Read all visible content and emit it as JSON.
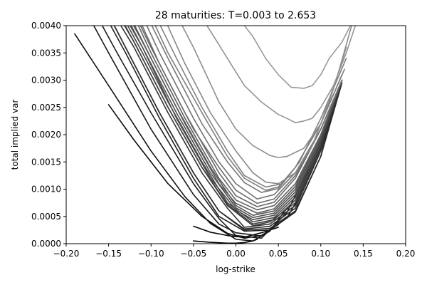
{
  "chart_data": {
    "type": "line",
    "title": "28 maturities: T=0.003 to 2.653",
    "xlabel": "log-strike",
    "ylabel": "total implied var",
    "xlim": [
      -0.2,
      0.2
    ],
    "ylim": [
      0,
      0.004
    ],
    "xticks": [
      -0.2,
      -0.15,
      -0.1,
      -0.05,
      0.0,
      0.05,
      0.1,
      0.15,
      0.2
    ],
    "xtick_labels": [
      "−0.20",
      "−0.15",
      "−0.10",
      "−0.05",
      "0.00",
      "0.05",
      "0.10",
      "0.15",
      "0.20"
    ],
    "yticks": [
      0,
      0.0005,
      0.001,
      0.0015,
      0.002,
      0.0025,
      0.003,
      0.0035,
      0.004
    ],
    "ytick_labels": [
      "0.0000",
      "0.0005",
      "0.0010",
      "0.0015",
      "0.0020",
      "0.0025",
      "0.0030",
      "0.0035",
      "0.0040"
    ],
    "grid": false,
    "legend": "none",
    "colors": {
      "darkest": "#000000",
      "lightest": "#999999"
    },
    "series": [
      {
        "x": [
          -0.05,
          -0.03,
          -0.01,
          0.0,
          0.01,
          0.02,
          0.025
        ],
        "y": [
          5e-05,
          2.5e-05,
          1e-05,
          1e-05,
          2e-05,
          5e-05,
          8e-05
        ]
      },
      {
        "x": [
          -0.05,
          -0.03,
          -0.01,
          0.0,
          0.01,
          0.03,
          0.05
        ],
        "y": [
          0.00032,
          0.00021,
          0.00015,
          0.00013,
          0.00012,
          0.0002,
          0.0003
        ]
      },
      {
        "x": [
          -0.15,
          -0.12,
          -0.08,
          -0.04,
          -0.01,
          0.01,
          0.03,
          0.05
        ],
        "y": [
          0.00255,
          0.0019,
          0.0011,
          0.0005,
          0.00019,
          0.0001,
          0.00015,
          0.00035
        ]
      },
      {
        "x": [
          -0.19,
          -0.15,
          -0.1,
          -0.06,
          -0.03,
          0.0,
          0.02,
          0.04,
          0.06
        ],
        "y": [
          0.00385,
          0.0029,
          0.0017,
          0.00086,
          0.00037,
          8e-05,
          5e-05,
          0.00023,
          0.00065
        ]
      },
      {
        "x": [
          -0.185,
          -0.15,
          -0.1,
          -0.05,
          -0.02,
          0.0,
          0.03,
          0.06,
          0.075
        ],
        "y": [
          0.0045,
          0.0035,
          0.0021,
          0.0009,
          0.00036,
          0.0002,
          0.00014,
          0.00047,
          0.00087
        ]
      },
      {
        "x": [
          -0.175,
          -0.14,
          -0.1,
          -0.05,
          -0.02,
          0.0,
          0.03,
          0.06,
          0.085
        ],
        "y": [
          0.0045,
          0.0035,
          0.0024,
          0.0011,
          0.00046,
          0.00015,
          0.0001,
          0.00057,
          0.00135
        ]
      },
      {
        "x": [
          -0.165,
          -0.13,
          -0.09,
          -0.05,
          -0.02,
          0.01,
          0.04,
          0.07,
          0.1,
          0.12
        ],
        "y": [
          0.0045,
          0.0035,
          0.0023,
          0.0012,
          0.0005,
          0.00023,
          0.00025,
          0.00058,
          0.0016,
          0.0028
        ]
      },
      {
        "x": [
          -0.16,
          -0.13,
          -0.09,
          -0.05,
          -0.02,
          0.01,
          0.04,
          0.07,
          0.1,
          0.124
        ],
        "y": [
          0.0045,
          0.0036,
          0.0024,
          0.0013,
          0.0006,
          0.00025,
          0.00028,
          0.0006,
          0.0016,
          0.0029
        ]
      },
      {
        "x": [
          -0.16,
          -0.13,
          -0.09,
          -0.05,
          -0.02,
          0.01,
          0.04,
          0.07,
          0.1,
          0.125
        ],
        "y": [
          0.0045,
          0.0036,
          0.0024,
          0.0013,
          0.0006,
          0.00027,
          0.00032,
          0.00065,
          0.0017,
          0.00295
        ]
      },
      {
        "x": [
          -0.155,
          -0.12,
          -0.08,
          -0.04,
          -0.01,
          0.01,
          0.04,
          0.07,
          0.1,
          0.125
        ],
        "y": [
          0.0045,
          0.0036,
          0.0024,
          0.0013,
          0.00065,
          0.0003,
          0.00036,
          0.0007,
          0.00175,
          0.003
        ]
      },
      {
        "x": [
          -0.15,
          -0.12,
          -0.08,
          -0.04,
          -0.01,
          0.02,
          0.04,
          0.07,
          0.1,
          0.125
        ],
        "y": [
          0.0045,
          0.0037,
          0.0025,
          0.0014,
          0.0007,
          0.00033,
          0.0004,
          0.00075,
          0.0018,
          0.003
        ]
      },
      {
        "x": [
          -0.148,
          -0.12,
          -0.08,
          -0.04,
          -0.01,
          0.02,
          0.045,
          0.07,
          0.1,
          0.125
        ],
        "y": [
          0.0045,
          0.0037,
          0.0025,
          0.0014,
          0.00072,
          0.00036,
          0.00044,
          0.0008,
          0.00185,
          0.003
        ]
      },
      {
        "x": [
          -0.145,
          -0.11,
          -0.08,
          -0.04,
          -0.01,
          0.02,
          0.045,
          0.07,
          0.1,
          0.125
        ],
        "y": [
          0.0045,
          0.0035,
          0.0026,
          0.0015,
          0.00075,
          0.0004,
          0.00048,
          0.00085,
          0.0019,
          0.003
        ]
      },
      {
        "x": [
          -0.143,
          -0.11,
          -0.07,
          -0.03,
          0.0,
          0.02,
          0.045,
          0.07,
          0.1,
          0.125
        ],
        "y": [
          0.0045,
          0.0036,
          0.0023,
          0.0012,
          0.00062,
          0.00044,
          0.00052,
          0.0009,
          0.0019,
          0.003
        ]
      },
      {
        "x": [
          -0.14,
          -0.11,
          -0.07,
          -0.03,
          0.0,
          0.02,
          0.045,
          0.07,
          0.1,
          0.125
        ],
        "y": [
          0.0045,
          0.0036,
          0.0024,
          0.0013,
          0.00066,
          0.00048,
          0.00056,
          0.00095,
          0.00195,
          0.003
        ]
      },
      {
        "x": [
          -0.138,
          -0.11,
          -0.07,
          -0.03,
          0.0,
          0.02,
          0.045,
          0.07,
          0.1,
          0.125
        ],
        "y": [
          0.0045,
          0.0037,
          0.0025,
          0.0014,
          0.0007,
          0.00052,
          0.0006,
          0.001,
          0.002,
          0.003
        ]
      },
      {
        "x": [
          -0.135,
          -0.1,
          -0.06,
          -0.02,
          0.0,
          0.025,
          0.045,
          0.07,
          0.1,
          0.125
        ],
        "y": [
          0.0045,
          0.0034,
          0.0022,
          0.0011,
          0.00074,
          0.00056,
          0.00064,
          0.00105,
          0.002,
          0.003
        ]
      },
      {
        "x": [
          -0.13,
          -0.1,
          -0.06,
          -0.02,
          0.0,
          0.025,
          0.045,
          0.07,
          0.1,
          0.125
        ],
        "y": [
          0.0045,
          0.0035,
          0.0023,
          0.0012,
          0.0008,
          0.00062,
          0.0007,
          0.0011,
          0.002,
          0.003
        ]
      },
      {
        "x": [
          -0.128,
          -0.1,
          -0.06,
          -0.02,
          0.0,
          0.025,
          0.045,
          0.07,
          0.1,
          0.125
        ],
        "y": [
          0.0045,
          0.0036,
          0.0024,
          0.0013,
          0.00088,
          0.00068,
          0.00076,
          0.0012,
          0.0021,
          0.003
        ]
      },
      {
        "x": [
          -0.125,
          -0.09,
          -0.05,
          -0.02,
          0.0,
          0.025,
          0.045,
          0.07,
          0.1,
          0.125
        ],
        "y": [
          0.0045,
          0.0033,
          0.0021,
          0.0014,
          0.00098,
          0.00074,
          0.00082,
          0.00125,
          0.0021,
          0.003
        ]
      },
      {
        "x": [
          -0.12,
          -0.09,
          -0.05,
          -0.02,
          0.0,
          0.025,
          0.045,
          0.07,
          0.1,
          0.125
        ],
        "y": [
          0.0045,
          0.0035,
          0.0023,
          0.0015,
          0.0011,
          0.00082,
          0.0009,
          0.0013,
          0.0021,
          0.003
        ]
      },
      {
        "x": [
          -0.115,
          -0.08,
          -0.04,
          -0.01,
          0.01,
          0.03,
          0.05,
          0.07,
          0.1,
          0.125
        ],
        "y": [
          0.0045,
          0.0034,
          0.0022,
          0.0015,
          0.00112,
          0.00094,
          0.00101,
          0.0014,
          0.0022,
          0.0031
        ]
      },
      {
        "x": [
          -0.11,
          -0.08,
          -0.04,
          -0.01,
          0.01,
          0.035,
          0.05,
          0.07,
          0.1,
          0.128
        ],
        "y": [
          0.0045,
          0.0035,
          0.0024,
          0.0016,
          0.0012,
          0.00098,
          0.00104,
          0.0014,
          0.0022,
          0.0032
        ]
      },
      {
        "x": [
          -0.105,
          -0.07,
          -0.04,
          -0.01,
          0.01,
          0.035,
          0.055,
          0.075,
          0.1,
          0.13
        ],
        "y": [
          0.0045,
          0.0034,
          0.0025,
          0.0017,
          0.00125,
          0.00104,
          0.0011,
          0.0015,
          0.0023,
          0.0034
        ]
      },
      {
        "x": [
          -0.095,
          -0.06,
          -0.03,
          0.0,
          0.02,
          0.035,
          0.05,
          0.07,
          0.09,
          0.11,
          0.13
        ],
        "y": [
          0.0045,
          0.0033,
          0.0024,
          0.0017,
          0.0013,
          0.00113,
          0.0011,
          0.0013,
          0.0018,
          0.0026,
          0.0036
        ]
      },
      {
        "x": [
          -0.08,
          -0.05,
          -0.02,
          0.0,
          0.02,
          0.04,
          0.05,
          0.06,
          0.08,
          0.1,
          0.12,
          0.14
        ],
        "y": [
          0.0045,
          0.0036,
          0.0026,
          0.0021,
          0.0018,
          0.00162,
          0.00158,
          0.0016,
          0.00175,
          0.0022,
          0.0031,
          0.0042
        ]
      },
      {
        "x": [
          -0.055,
          -0.03,
          -0.01,
          0.01,
          0.03,
          0.05,
          0.06,
          0.07,
          0.08,
          0.09,
          0.1,
          0.115,
          0.13,
          0.145
        ],
        "y": [
          0.0045,
          0.0039,
          0.0034,
          0.0029,
          0.0026,
          0.00237,
          0.0023,
          0.00222,
          0.00225,
          0.0023,
          0.0025,
          0.0029,
          0.0035,
          0.0042
        ]
      },
      {
        "x": [
          -0.015,
          0.005,
          0.02,
          0.035,
          0.05,
          0.065,
          0.08,
          0.09,
          0.1,
          0.11,
          0.125,
          0.135,
          0.145
        ],
        "y": [
          0.0045,
          0.0041,
          0.0038,
          0.0034,
          0.0031,
          0.00287,
          0.00285,
          0.0029,
          0.0031,
          0.0034,
          0.0037,
          0.004,
          0.0043
        ]
      }
    ]
  }
}
